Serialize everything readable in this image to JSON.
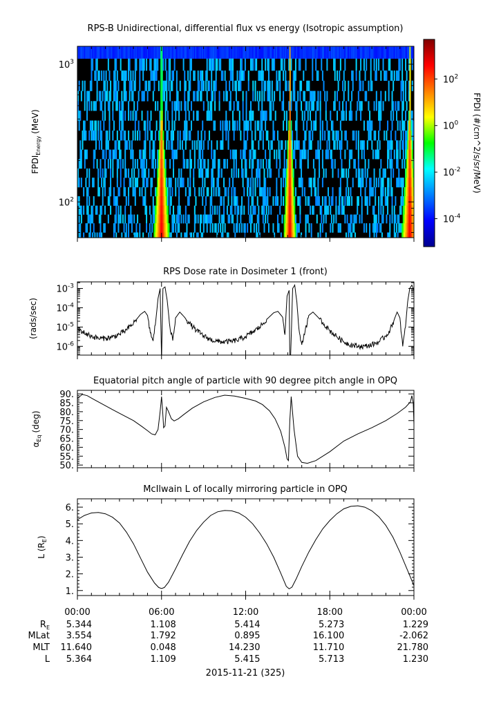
{
  "chart_data": [
    {
      "type": "heatmap",
      "title": "RPS-B  Unidirectional, differential flux vs energy (Isotropic assumption)",
      "ylabel_main": "FPDI",
      "ylabel_sub": "Energy",
      "ylabel_unit": "(MeV)",
      "y_scale": "log",
      "ylim": [
        55,
        1350
      ],
      "y_ticks": [
        {
          "value": 100,
          "base": "10",
          "exp": "2"
        },
        {
          "value": 1000,
          "base": "10",
          "exp": "3"
        }
      ],
      "energy_bins_top": [
        1350,
        1100,
        900,
        760,
        640,
        540,
        460,
        390,
        330,
        280,
        240,
        205,
        175,
        150,
        128,
        110,
        94,
        81,
        70,
        60,
        55
      ],
      "colorbar": {
        "label": "FPDI (#/cm^2/s/sr/MeV)",
        "scale": "log",
        "range": [
          -5.2,
          3.7
        ],
        "ticks": [
          {
            "value": 2,
            "base": "10",
            "exp": "2"
          },
          {
            "value": 0,
            "base": "10",
            "exp": "0"
          },
          {
            "value": -2,
            "base": "10",
            "exp": "-2"
          },
          {
            "value": -4,
            "base": "10",
            "exp": "-4"
          }
        ]
      },
      "belt_crossings_hours": [
        {
          "center": 6.0,
          "slope_hours_per_decade": 0.6
        },
        {
          "center": 15.15,
          "slope_hours_per_decade": 0.45
        },
        {
          "center": 23.7,
          "slope_hours_per_decade": 0.6
        }
      ],
      "top_row_log_flux": -3.7,
      "background_log_flux": -2.6,
      "peak_log_flux": 2.8
    },
    {
      "type": "line",
      "title": "RPS  Dose rate in Dosimeter 1 (front)",
      "ylabel": "(rads/sec)",
      "y_scale": "log",
      "ylim": [
        3.5e-07,
        0.0022
      ],
      "y_ticks": [
        {
          "value": 1e-06,
          "base": "10",
          "exp": "-6"
        },
        {
          "value": 1e-05,
          "base": "10",
          "exp": "-5"
        },
        {
          "value": 0.0001,
          "base": "10",
          "exp": "-4"
        },
        {
          "value": 0.001,
          "base": "10",
          "exp": "-3"
        }
      ],
      "x_hours": [
        0,
        0.5,
        1,
        1.5,
        2,
        2.5,
        3,
        3.5,
        4,
        4.5,
        4.8,
        5.0,
        5.2,
        5.4,
        5.6,
        5.75,
        5.9,
        6.0,
        6.1,
        6.25,
        6.4,
        6.6,
        6.8,
        7.0,
        7.3,
        7.6,
        8.0,
        8.5,
        9,
        9.5,
        10,
        10.5,
        11,
        11.5,
        12,
        12.5,
        13,
        13.5,
        14,
        14.3,
        14.6,
        14.8,
        14.95,
        15.1,
        15.15,
        15.2,
        15.35,
        15.5,
        15.65,
        15.8,
        16.0,
        16.2,
        16.5,
        16.8,
        17.2,
        17.6,
        18,
        18.5,
        19,
        19.5,
        20,
        20.5,
        21,
        21.5,
        22,
        22.3,
        22.6,
        22.8,
        23.0,
        23.2,
        23.4,
        23.55,
        23.7,
        23.85,
        24.0
      ],
      "values": [
        8e-06,
        5e-06,
        3.3e-06,
        2.6e-06,
        2.6e-06,
        3e-06,
        4.2e-06,
        7e-06,
        1.6e-05,
        4.5e-05,
        6.5e-05,
        4e-05,
        5e-06,
        2e-06,
        2.5e-05,
        0.0003,
        0.001,
        2e-07,
        0.001,
        0.0012,
        0.00025,
        1e-05,
        2e-06,
        3e-05,
        6e-05,
        3.5e-05,
        1.5e-05,
        6.5e-06,
        3.5e-06,
        2.2e-06,
        1.8e-06,
        1.7e-06,
        1.8e-06,
        2.2e-06,
        3.2e-06,
        5.5e-06,
        1e-05,
        2.5e-05,
        5.5e-05,
        6.5e-05,
        3.5e-05,
        4e-06,
        0.0004,
        0.0008,
        2e-07,
        2e-07,
        0.001,
        0.0015,
        0.0002,
        8e-06,
        1.2e-06,
        4e-06,
        4e-05,
        6e-05,
        3e-05,
        1.4e-05,
        6.5e-06,
        3.2e-06,
        1.7e-06,
        1.2e-06,
        1e-06,
        1e-06,
        1.2e-06,
        1.7e-06,
        3.5e-06,
        7e-06,
        2.5e-05,
        6e-05,
        3e-05,
        1e-06,
        1e-05,
        0.0002,
        0.001,
        0.0015,
        0.0008
      ]
    },
    {
      "type": "line",
      "title": "Equatorial pitch angle of particle with 90 degree pitch angle in OPQ",
      "ylabel_main": "α",
      "ylabel_sub": "Eq",
      "ylabel_unit": "(deg)",
      "ylim": [
        48.5,
        92
      ],
      "y_ticks": [
        50,
        55,
        60,
        65,
        70,
        75,
        80,
        85,
        90
      ],
      "x_hours": [
        0,
        0.35,
        0.7,
        1.2,
        1.8,
        2.5,
        3.2,
        4.0,
        4.6,
        5.0,
        5.3,
        5.55,
        5.75,
        5.9,
        6.0,
        6.08,
        6.15,
        6.25,
        6.35,
        6.5,
        6.7,
        6.9,
        7.2,
        7.6,
        8.2,
        9.0,
        9.8,
        10.5,
        11.2,
        12.0,
        12.7,
        13.2,
        13.7,
        14.1,
        14.5,
        14.8,
        14.95,
        15.05,
        15.15,
        15.25,
        15.45,
        15.7,
        16.0,
        16.4,
        17.0,
        18.0,
        19.0,
        20.0,
        21.0,
        22.0,
        22.8,
        23.4,
        23.75,
        23.85,
        23.95,
        24.0
      ],
      "values": [
        87.5,
        89.7,
        89.0,
        86.8,
        84.2,
        81.2,
        78.3,
        75.0,
        71.7,
        69.3,
        67.5,
        67.0,
        70.0,
        80.0,
        88.5,
        80.0,
        71.0,
        72.0,
        82.5,
        80.0,
        76.0,
        74.8,
        76.0,
        78.5,
        82.0,
        85.5,
        88.0,
        89.3,
        88.8,
        87.5,
        86.0,
        84.0,
        80.5,
        76.0,
        69.0,
        60.0,
        53.5,
        52.5,
        75.0,
        88.5,
        70.0,
        55.0,
        51.5,
        51.0,
        52.5,
        57.5,
        63.5,
        67.5,
        71.0,
        75.0,
        79.0,
        82.5,
        85.5,
        89.0,
        85.0,
        73.0
      ]
    },
    {
      "type": "line",
      "title": "McIlwain L of locally mirroring particle in OPQ",
      "ylabel_main": "L (R",
      "ylabel_sub": "E",
      "ylabel_close": ")",
      "ylim": [
        0.7,
        6.5
      ],
      "y_ticks": [
        1,
        2,
        3,
        4,
        5,
        6
      ],
      "x_hours": [
        0,
        0.5,
        1,
        1.5,
        2,
        2.5,
        3,
        3.5,
        4,
        4.5,
        5,
        5.5,
        5.8,
        6.0,
        6.2,
        6.5,
        7,
        7.5,
        8,
        8.5,
        9,
        9.5,
        10,
        10.5,
        11,
        11.5,
        12,
        12.5,
        13,
        13.5,
        14,
        14.5,
        14.9,
        15.1,
        15.3,
        15.6,
        16,
        16.5,
        17,
        17.5,
        18,
        18.5,
        19,
        19.5,
        20,
        20.5,
        21,
        21.5,
        22,
        22.5,
        23,
        23.5,
        24.0
      ],
      "values": [
        5.25,
        5.5,
        5.65,
        5.68,
        5.6,
        5.4,
        5.05,
        4.5,
        3.8,
        2.95,
        2.1,
        1.45,
        1.18,
        1.12,
        1.18,
        1.5,
        2.3,
        3.15,
        3.95,
        4.6,
        5.1,
        5.5,
        5.72,
        5.8,
        5.78,
        5.65,
        5.4,
        5.0,
        4.45,
        3.8,
        3.0,
        2.05,
        1.25,
        1.1,
        1.2,
        1.7,
        2.45,
        3.3,
        4.05,
        4.7,
        5.2,
        5.6,
        5.9,
        6.05,
        6.08,
        6.0,
        5.78,
        5.42,
        4.9,
        4.2,
        3.3,
        2.3,
        1.3
      ]
    }
  ],
  "x_axis": {
    "tick_labels": [
      "00:00",
      "06:00",
      "12:00",
      "18:00",
      "00:00"
    ],
    "tick_hours": [
      0,
      6,
      12,
      18,
      24
    ],
    "minor_tick_hours": [
      1,
      2,
      3,
      4,
      5,
      7,
      8,
      9,
      10,
      11,
      13,
      14,
      15,
      16,
      17,
      19,
      20,
      21,
      22,
      23
    ],
    "date_label": "2015-11-21 (325)"
  },
  "ephemeris": {
    "rows": [
      {
        "label_main": "R",
        "label_sub": "E",
        "values": [
          "5.344",
          "1.108",
          "5.414",
          "5.273",
          "1.229"
        ]
      },
      {
        "label_main": "MLat",
        "label_sub": "",
        "values": [
          "3.554",
          "1.792",
          "0.895",
          "16.100",
          "-2.062"
        ]
      },
      {
        "label_main": "MLT",
        "label_sub": "",
        "values": [
          "11.640",
          "0.048",
          "14.230",
          "11.710",
          "21.780"
        ]
      },
      {
        "label_main": "L",
        "label_sub": "",
        "values": [
          "5.364",
          "1.109",
          "5.415",
          "5.713",
          "1.230"
        ]
      }
    ]
  }
}
